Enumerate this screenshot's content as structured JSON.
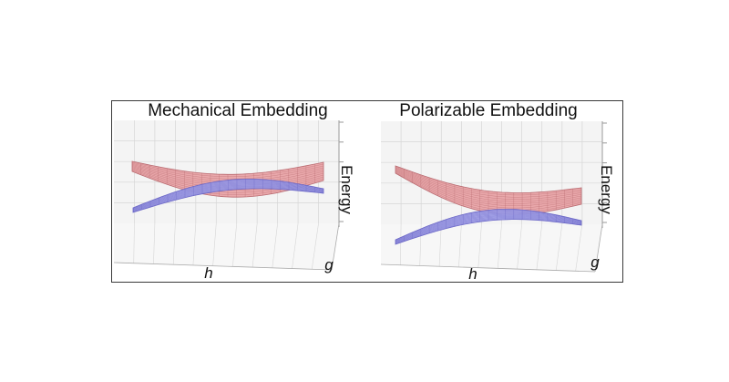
{
  "chart_data": [
    {
      "type": "surface",
      "title": "Mechanical Embedding",
      "xlabel": "h",
      "ylabel": "g",
      "zlabel": "Energy",
      "series": [
        {
          "color": "#e8a3a6"
        },
        {
          "color": "#a7a5ea"
        }
      ],
      "gap": "small"
    },
    {
      "type": "surface",
      "title": "Polarizable Embedding",
      "xlabel": "h",
      "ylabel": "g",
      "zlabel": "Energy",
      "series": [
        {
          "color": "#e8a3a6"
        },
        {
          "color": "#a7a5ea"
        }
      ],
      "gap": "large"
    }
  ],
  "colors": {
    "upper_surface": "#e8a3a6",
    "upper_grid": "#b96a70",
    "lower_surface": "#a7a5ea",
    "lower_grid": "#6a66c6",
    "pane": "#f4f4f4",
    "gridline": "#d6d6d6"
  }
}
